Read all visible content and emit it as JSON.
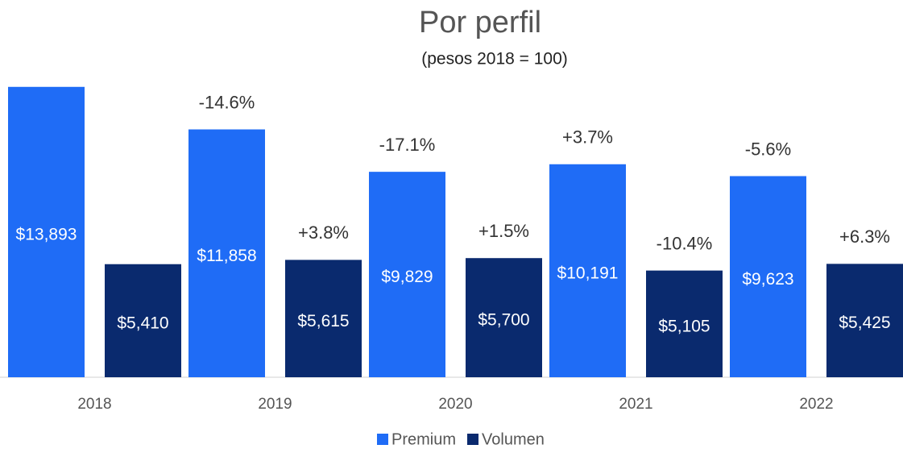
{
  "chart_data": {
    "type": "bar",
    "title": "Por perfil",
    "subtitle": "(pesos 2018 = 100)",
    "categories": [
      "2018",
      "2019",
      "2020",
      "2021",
      "2022"
    ],
    "series": [
      {
        "name": "Premium",
        "color": "#1f6cf6",
        "values": [
          13893,
          11858,
          9829,
          10191,
          9623
        ],
        "value_labels": [
          "$13,893",
          "$11,858",
          "$9,829",
          "$10,191",
          "$9,623"
        ],
        "change_labels": [
          null,
          "-14.6%",
          "-17.1%",
          "+3.7%",
          "-5.6%"
        ]
      },
      {
        "name": "Volumen",
        "color": "#0a2a6e",
        "values": [
          5410,
          5615,
          5700,
          5105,
          5425
        ],
        "value_labels": [
          "$5,410",
          "$5,615",
          "$5,700",
          "$5,105",
          "$5,425"
        ],
        "change_labels": [
          null,
          "+3.8%",
          "+1.5%",
          "-10.4%",
          "+6.3%"
        ]
      }
    ],
    "ylim": [
      0,
      14000
    ],
    "legend": "bottom"
  }
}
